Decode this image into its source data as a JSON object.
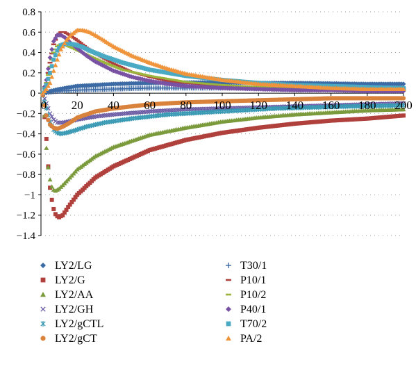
{
  "chart_data": {
    "type": "scatter",
    "title": "",
    "xlabel": "",
    "ylabel": "",
    "xlim": [
      0,
      200
    ],
    "ylim": [
      -1.4,
      0.8
    ],
    "x_ticks": [
      "20",
      "40",
      "60",
      "80",
      "100",
      "120",
      "140",
      "160",
      "180",
      "200"
    ],
    "y_ticks": [
      "0.8",
      "0.6",
      "0.4",
      "0.2",
      "0",
      "−0.2",
      "−0.4",
      "−0.6",
      "−0.8",
      "−1",
      "−1.2",
      "−1.4"
    ],
    "x_origin_label": "0",
    "grid": "horizontal dotted",
    "legend_position": "bottom",
    "series": [
      {
        "name": "LY2/LG",
        "marker": "diamond",
        "color": "#3c6aa4",
        "points": [
          [
            2,
            0
          ],
          [
            5,
            0.02
          ],
          [
            10,
            0.04
          ],
          [
            20,
            0.07
          ],
          [
            40,
            0.09
          ],
          [
            60,
            0.1
          ],
          [
            80,
            0.105
          ],
          [
            100,
            0.105
          ],
          [
            120,
            0.1
          ],
          [
            140,
            0.1
          ],
          [
            160,
            0.095
          ],
          [
            180,
            0.09
          ],
          [
            200,
            0.09
          ]
        ]
      },
      {
        "name": "LY2/G",
        "marker": "square",
        "color": "#b0403c",
        "points": [
          [
            1,
            -0.02
          ],
          [
            3,
            -0.45
          ],
          [
            4,
            -0.72
          ],
          [
            5,
            -0.93
          ],
          [
            6,
            -1.05
          ],
          [
            7,
            -1.14
          ],
          [
            8,
            -1.19
          ],
          [
            9,
            -1.21
          ],
          [
            10,
            -1.22
          ],
          [
            12,
            -1.2
          ],
          [
            15,
            -1.12
          ],
          [
            20,
            -1.0
          ],
          [
            30,
            -0.83
          ],
          [
            40,
            -0.72
          ],
          [
            60,
            -0.56
          ],
          [
            80,
            -0.46
          ],
          [
            100,
            -0.39
          ],
          [
            120,
            -0.34
          ],
          [
            140,
            -0.3
          ],
          [
            160,
            -0.27
          ],
          [
            180,
            -0.25
          ],
          [
            200,
            -0.22
          ]
        ]
      },
      {
        "name": "LY2/AA",
        "marker": "triangle",
        "color": "#7a9a3c",
        "points": [
          [
            1,
            -0.02
          ],
          [
            2,
            -0.22
          ],
          [
            3,
            -0.54
          ],
          [
            4,
            -0.73
          ],
          [
            5,
            -0.85
          ],
          [
            6,
            -0.92
          ],
          [
            7,
            -0.95
          ],
          [
            8,
            -0.96
          ],
          [
            10,
            -0.94
          ],
          [
            15,
            -0.85
          ],
          [
            20,
            -0.75
          ],
          [
            30,
            -0.62
          ],
          [
            40,
            -0.53
          ],
          [
            60,
            -0.41
          ],
          [
            80,
            -0.34
          ],
          [
            100,
            -0.28
          ],
          [
            120,
            -0.24
          ],
          [
            140,
            -0.21
          ],
          [
            160,
            -0.19
          ],
          [
            180,
            -0.17
          ],
          [
            200,
            -0.16
          ]
        ]
      },
      {
        "name": "LY2/GH",
        "marker": "x",
        "color": "#6a5aa4",
        "points": [
          [
            1,
            -0.01
          ],
          [
            3,
            -0.1
          ],
          [
            5,
            -0.2
          ],
          [
            7,
            -0.26
          ],
          [
            9,
            -0.29
          ],
          [
            12,
            -0.29
          ],
          [
            15,
            -0.28
          ],
          [
            20,
            -0.26
          ],
          [
            30,
            -0.23
          ],
          [
            40,
            -0.21
          ],
          [
            60,
            -0.18
          ],
          [
            80,
            -0.16
          ],
          [
            100,
            -0.15
          ],
          [
            120,
            -0.14
          ],
          [
            140,
            -0.13
          ],
          [
            160,
            -0.12
          ],
          [
            180,
            -0.11
          ],
          [
            200,
            -0.1
          ]
        ]
      },
      {
        "name": "LY2/gCTL",
        "marker": "asterisk",
        "color": "#3a9ab4",
        "points": [
          [
            1,
            -0.02
          ],
          [
            3,
            -0.15
          ],
          [
            5,
            -0.28
          ],
          [
            7,
            -0.36
          ],
          [
            9,
            -0.39
          ],
          [
            11,
            -0.4
          ],
          [
            14,
            -0.39
          ],
          [
            18,
            -0.37
          ],
          [
            25,
            -0.33
          ],
          [
            35,
            -0.29
          ],
          [
            50,
            -0.25
          ],
          [
            70,
            -0.21
          ],
          [
            90,
            -0.19
          ],
          [
            110,
            -0.17
          ],
          [
            130,
            -0.15
          ],
          [
            150,
            -0.14
          ],
          [
            170,
            -0.13
          ],
          [
            200,
            -0.12
          ]
        ]
      },
      {
        "name": "LY2/gCT",
        "marker": "circle",
        "color": "#d9823c",
        "points": [
          [
            1,
            -0.02
          ],
          [
            2,
            -0.12
          ],
          [
            3,
            -0.22
          ],
          [
            5,
            -0.31
          ],
          [
            7,
            -0.34
          ],
          [
            9,
            -0.35
          ],
          [
            12,
            -0.33
          ],
          [
            16,
            -0.29
          ],
          [
            20,
            -0.24
          ],
          [
            30,
            -0.18
          ],
          [
            40,
            -0.15
          ],
          [
            60,
            -0.11
          ],
          [
            80,
            -0.09
          ],
          [
            100,
            -0.08
          ],
          [
            120,
            -0.07
          ],
          [
            140,
            -0.06
          ],
          [
            160,
            -0.05
          ],
          [
            180,
            -0.05
          ],
          [
            200,
            -0.05
          ]
        ]
      },
      {
        "name": "T30/1",
        "marker": "plus",
        "color": "#3c6aa4",
        "points": [
          [
            2,
            0
          ],
          [
            5,
            0.01
          ],
          [
            10,
            0.02
          ],
          [
            20,
            0.03
          ],
          [
            40,
            0.04
          ],
          [
            60,
            0.05
          ],
          [
            80,
            0.05
          ],
          [
            100,
            0.05
          ],
          [
            120,
            0.05
          ],
          [
            140,
            0.05
          ],
          [
            160,
            0.05
          ],
          [
            180,
            0.05
          ],
          [
            200,
            0.05
          ]
        ]
      },
      {
        "name": "P10/1",
        "marker": "dash",
        "color": "#b0403c",
        "points": [
          [
            1,
            0
          ],
          [
            3,
            0.1
          ],
          [
            5,
            0.3
          ],
          [
            7,
            0.48
          ],
          [
            9,
            0.57
          ],
          [
            11,
            0.6
          ],
          [
            13,
            0.6
          ],
          [
            16,
            0.57
          ],
          [
            20,
            0.52
          ],
          [
            25,
            0.45
          ],
          [
            30,
            0.39
          ],
          [
            40,
            0.29
          ],
          [
            50,
            0.21
          ],
          [
            60,
            0.16
          ],
          [
            70,
            0.12
          ],
          [
            80,
            0.1
          ],
          [
            100,
            0.07
          ],
          [
            120,
            0.05
          ],
          [
            140,
            0.04
          ],
          [
            160,
            0.03
          ],
          [
            180,
            0.03
          ],
          [
            200,
            0.03
          ]
        ]
      },
      {
        "name": "P10/2",
        "marker": "dash",
        "color": "#9ab43c",
        "points": [
          [
            1,
            0
          ],
          [
            3,
            0.1
          ],
          [
            5,
            0.26
          ],
          [
            7,
            0.4
          ],
          [
            9,
            0.46
          ],
          [
            11,
            0.48
          ],
          [
            14,
            0.47
          ],
          [
            18,
            0.44
          ],
          [
            25,
            0.38
          ],
          [
            35,
            0.3
          ],
          [
            45,
            0.23
          ],
          [
            60,
            0.17
          ],
          [
            80,
            0.11
          ],
          [
            100,
            0.08
          ],
          [
            120,
            0.06
          ],
          [
            140,
            0.05
          ],
          [
            160,
            0.04
          ],
          [
            180,
            0.03
          ],
          [
            200,
            0.03
          ]
        ]
      },
      {
        "name": "P40/1",
        "marker": "diamond",
        "color": "#7a52a4",
        "points": [
          [
            1,
            0
          ],
          [
            3,
            0.13
          ],
          [
            5,
            0.35
          ],
          [
            7,
            0.51
          ],
          [
            9,
            0.57
          ],
          [
            11,
            0.57
          ],
          [
            13,
            0.55
          ],
          [
            16,
            0.5
          ],
          [
            20,
            0.44
          ],
          [
            25,
            0.37
          ],
          [
            30,
            0.31
          ],
          [
            40,
            0.22
          ],
          [
            50,
            0.16
          ],
          [
            60,
            0.12
          ],
          [
            70,
            0.09
          ],
          [
            80,
            0.07
          ],
          [
            100,
            0.05
          ],
          [
            120,
            0.04
          ],
          [
            140,
            0.03
          ],
          [
            160,
            0.03
          ],
          [
            180,
            0.02
          ],
          [
            200,
            0.02
          ]
        ]
      },
      {
        "name": "T70/2",
        "marker": "square",
        "color": "#4aaac4",
        "points": [
          [
            1,
            0
          ],
          [
            3,
            0.08
          ],
          [
            5,
            0.2
          ],
          [
            7,
            0.33
          ],
          [
            9,
            0.42
          ],
          [
            11,
            0.47
          ],
          [
            14,
            0.49
          ],
          [
            18,
            0.48
          ],
          [
            22,
            0.46
          ],
          [
            28,
            0.41
          ],
          [
            35,
            0.36
          ],
          [
            45,
            0.3
          ],
          [
            60,
            0.23
          ],
          [
            80,
            0.17
          ],
          [
            100,
            0.13
          ],
          [
            120,
            0.1
          ],
          [
            140,
            0.08
          ],
          [
            160,
            0.07
          ],
          [
            180,
            0.06
          ],
          [
            200,
            0.05
          ]
        ]
      },
      {
        "name": "PA/2",
        "marker": "triangle",
        "color": "#f0943c",
        "points": [
          [
            1,
            0
          ],
          [
            3,
            0.04
          ],
          [
            5,
            0.1
          ],
          [
            7,
            0.22
          ],
          [
            9,
            0.33
          ],
          [
            11,
            0.43
          ],
          [
            14,
            0.52
          ],
          [
            17,
            0.58
          ],
          [
            20,
            0.62
          ],
          [
            23,
            0.62
          ],
          [
            27,
            0.6
          ],
          [
            32,
            0.55
          ],
          [
            40,
            0.46
          ],
          [
            50,
            0.37
          ],
          [
            60,
            0.3
          ],
          [
            70,
            0.24
          ],
          [
            80,
            0.19
          ],
          [
            100,
            0.13
          ],
          [
            120,
            0.09
          ],
          [
            140,
            0.07
          ],
          [
            160,
            0.05
          ],
          [
            180,
            0.04
          ],
          [
            200,
            0.04
          ]
        ]
      }
    ]
  }
}
